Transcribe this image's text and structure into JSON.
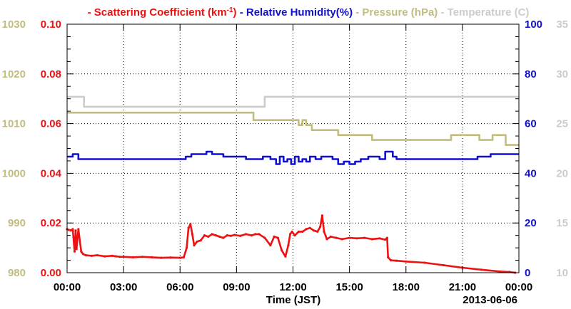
{
  "chart_data": {
    "type": "line",
    "xlabel": "Time (JST)",
    "date_label": "2013-06-06",
    "x_ticks": [
      "00:00",
      "03:00",
      "06:00",
      "09:00",
      "12:00",
      "15:00",
      "18:00",
      "21:00",
      "00:00"
    ],
    "xlim_hours": [
      0,
      24
    ],
    "grid": true,
    "legend": {
      "placement": "top",
      "entries": [
        {
          "name": "Scattering Coefficient (km",
          "sup": "-1",
          "close": ")",
          "color": "#ee1111"
        },
        {
          "name": "Relative Humidity(%)",
          "color": "#1111cc"
        },
        {
          "name": "Pressure (hPa)",
          "color": "#c2bc7e"
        },
        {
          "name": "Temperature (C)",
          "color": "#cccccc"
        }
      ]
    },
    "axes": {
      "pressure": {
        "side": "left-outer",
        "color": "#c2bc7e",
        "ylim": [
          980,
          1030
        ],
        "ticks": [
          "980",
          "990",
          "1000",
          "1010",
          "1020",
          "1030"
        ]
      },
      "scattering": {
        "side": "left-inner",
        "color": "#ee1111",
        "ylim": [
          0,
          0.1
        ],
        "ticks": [
          "0.00",
          "0.02",
          "0.04",
          "0.06",
          "0.08",
          "0.10"
        ]
      },
      "humidity": {
        "side": "right-inner",
        "color": "#1111cc",
        "ylim": [
          0,
          100
        ],
        "ticks": [
          "0",
          "20",
          "40",
          "60",
          "80",
          "100"
        ]
      },
      "temperature": {
        "side": "right-outer",
        "color": "#cccccc",
        "ylim": [
          10,
          35
        ],
        "ticks": [
          "10",
          "15",
          "20",
          "25",
          "30",
          "35"
        ]
      }
    },
    "series": [
      {
        "name": "Temperature (C)",
        "axis": "temperature",
        "color": "#cccccc",
        "step": true,
        "x": [
          0,
          0.9,
          10.5,
          24
        ],
        "y": [
          27.7,
          26.7,
          27.7,
          27.7
        ]
      },
      {
        "name": "Pressure (hPa)",
        "axis": "pressure",
        "color": "#c2bc7e",
        "step": true,
        "x": [
          0,
          9.9,
          12.3,
          12.5,
          12.7,
          13.0,
          14.4,
          16.2,
          19.9,
          20.4,
          21.9,
          22.6,
          23.3,
          24
        ],
        "y": [
          1012.2,
          1010.7,
          1009.7,
          1010.7,
          1009.7,
          1008.7,
          1007.7,
          1006.7,
          1006.7,
          1007.7,
          1006.7,
          1007.7,
          1005.7,
          1005.7
        ]
      },
      {
        "name": "Relative Humidity(%)",
        "axis": "humidity",
        "color": "#1111cc",
        "step": true,
        "x": [
          0,
          0.3,
          0.6,
          6.3,
          6.6,
          7.4,
          7.7,
          8.3,
          9.5,
          10.4,
          10.8,
          11.1,
          11.3,
          11.5,
          11.7,
          11.9,
          12.1,
          12.3,
          12.5,
          12.7,
          12.9,
          13.2,
          13.5,
          14.1,
          14.4,
          14.7,
          15.0,
          15.3,
          15.6,
          16.0,
          16.6,
          16.9,
          17.3,
          17.5,
          19.0,
          21.8,
          22.5,
          24
        ],
        "y": [
          46.7,
          47.7,
          45.7,
          46.7,
          47.7,
          48.7,
          47.7,
          46.7,
          45.7,
          46.7,
          45.7,
          43.7,
          46.7,
          44.7,
          45.7,
          43.7,
          46.7,
          44.7,
          45.7,
          44.7,
          46.7,
          45.7,
          46.7,
          45.7,
          43.7,
          44.7,
          43.7,
          44.7,
          45.7,
          46.7,
          45.7,
          48.7,
          46.7,
          45.7,
          45.7,
          46.7,
          47.7,
          47.7
        ]
      },
      {
        "name": "Scattering Coefficient (km-1)",
        "axis": "scattering",
        "color": "#ee1111",
        "step": false,
        "x": [
          0,
          0.1,
          0.2,
          0.3,
          0.4,
          0.45,
          0.5,
          0.6,
          0.75,
          0.85,
          1.0,
          1.3,
          1.6,
          2.0,
          2.4,
          2.6,
          2.8,
          3.0,
          3.5,
          4.0,
          4.5,
          5.0,
          5.5,
          6.0,
          6.2,
          6.35,
          6.45,
          6.55,
          6.65,
          6.75,
          6.9,
          7.1,
          7.3,
          7.5,
          7.7,
          7.9,
          8.1,
          8.3,
          8.5,
          8.7,
          8.9,
          9.2,
          9.5,
          9.8,
          10.0,
          10.2,
          10.5,
          10.8,
          11.0,
          11.2,
          11.4,
          11.6,
          11.75,
          11.85,
          11.95,
          12.1,
          12.3,
          12.5,
          12.7,
          12.9,
          13.1,
          13.3,
          13.45,
          13.55,
          13.65,
          13.8,
          14.0,
          14.3,
          14.6,
          15.0,
          15.4,
          15.8,
          16.2,
          16.6,
          16.9,
          17.0,
          17.05,
          17.2,
          17.5,
          18.0,
          19.0,
          20.0,
          21.0,
          22.0,
          23.0,
          23.5,
          23.8
        ],
        "y": [
          0.0175,
          0.0172,
          0.017,
          0.0175,
          0.0085,
          0.017,
          0.0095,
          0.0175,
          0.0085,
          0.0075,
          0.007,
          0.0068,
          0.007,
          0.0066,
          0.0068,
          0.0066,
          0.0064,
          0.0064,
          0.0062,
          0.0064,
          0.0062,
          0.006,
          0.0061,
          0.006,
          0.0062,
          0.01,
          0.018,
          0.0195,
          0.0155,
          0.011,
          0.0125,
          0.013,
          0.015,
          0.0145,
          0.0155,
          0.015,
          0.0145,
          0.014,
          0.015,
          0.0148,
          0.0152,
          0.0148,
          0.0155,
          0.015,
          0.0155,
          0.0155,
          0.014,
          0.011,
          0.0145,
          0.014,
          0.009,
          0.0065,
          0.011,
          0.0155,
          0.0165,
          0.015,
          0.0165,
          0.0165,
          0.0175,
          0.018,
          0.017,
          0.0165,
          0.0185,
          0.023,
          0.0165,
          0.0135,
          0.0145,
          0.014,
          0.0135,
          0.014,
          0.0138,
          0.014,
          0.0135,
          0.0138,
          0.0133,
          0.014,
          0.0062,
          0.005,
          0.0048,
          0.0045,
          0.004,
          0.003,
          0.002,
          0.0012,
          0.0005,
          0.0003,
          0.0
        ]
      }
    ]
  }
}
